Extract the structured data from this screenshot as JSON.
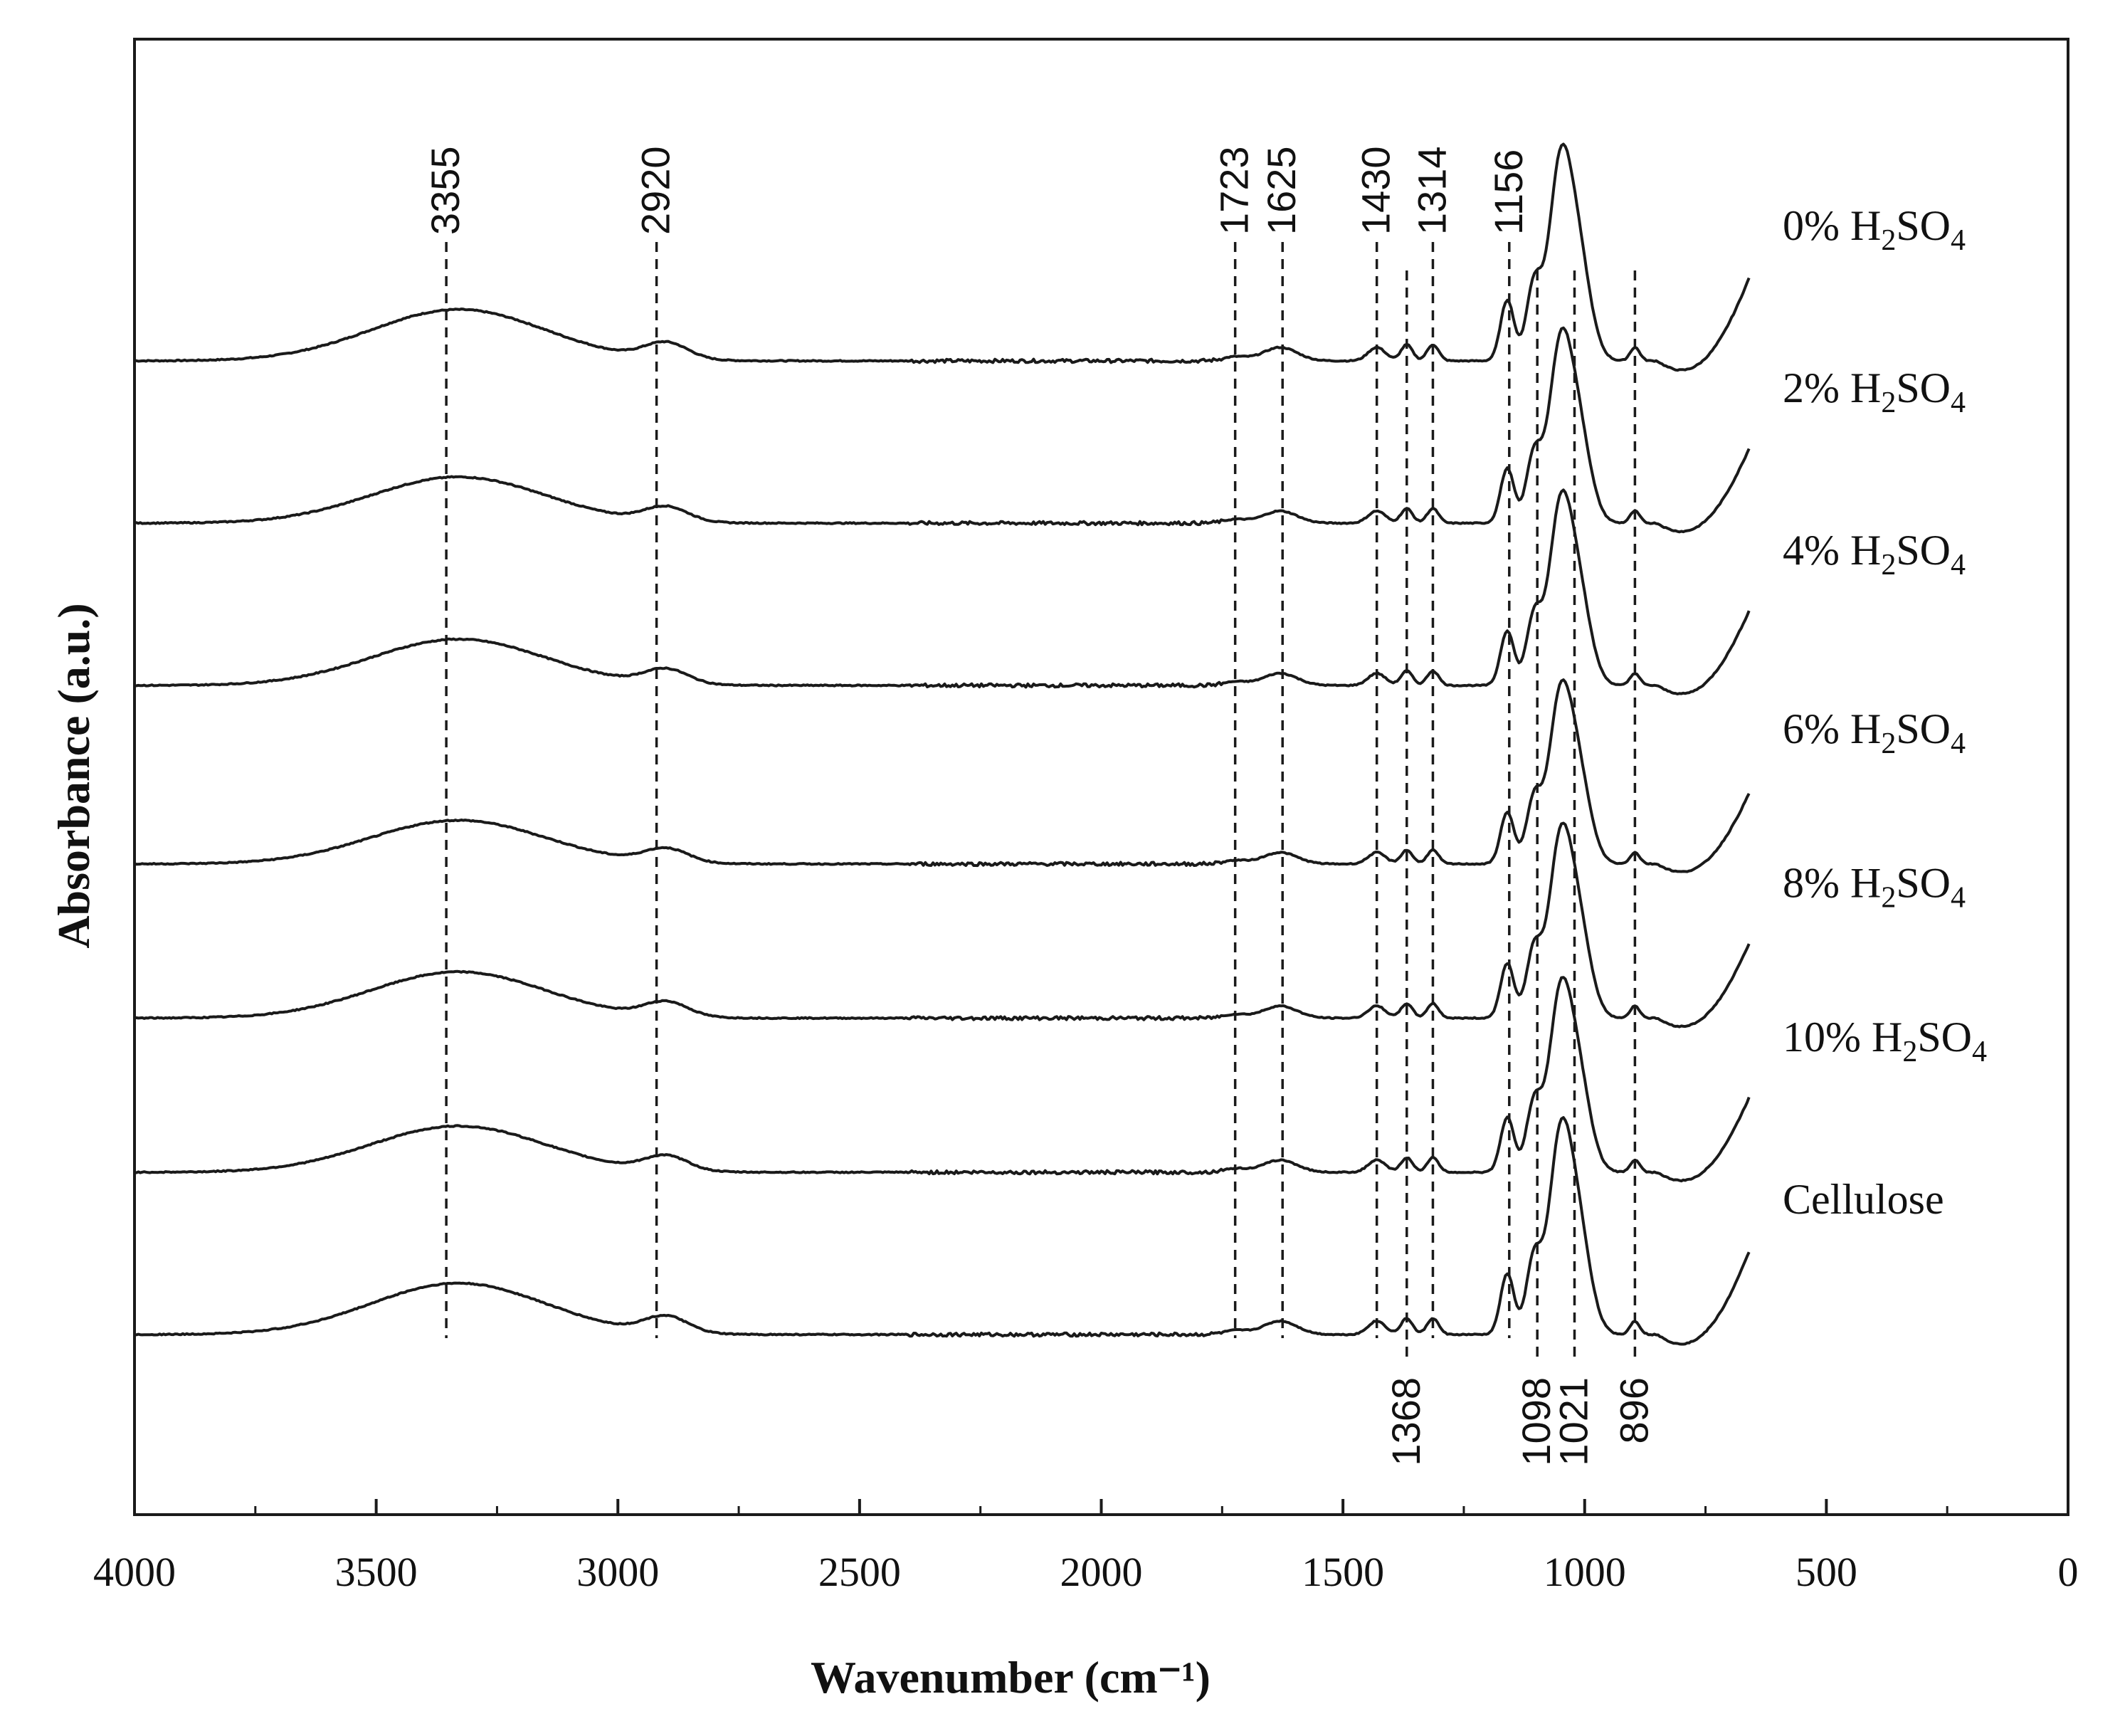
{
  "chart_data": {
    "type": "line",
    "title": "",
    "xlabel": "Wavenumber (cm⁻¹)",
    "ylabel": "Absorbance (a.u.)",
    "xlim": [
      4000,
      0
    ],
    "x_reversed": true,
    "x_ticks": [
      4000,
      3500,
      3000,
      2500,
      2000,
      1500,
      1000,
      500,
      0
    ],
    "y_ticks": [],
    "grid": false,
    "series": [
      {
        "name": "0% H2SO4",
        "label_main": "0% H",
        "label_sub1": "2",
        "label_mid": "SO",
        "label_sub2": "4",
        "offset": 6.0,
        "scale": 1.0
      },
      {
        "name": "2% H2SO4",
        "label_main": "2% H",
        "label_sub1": "2",
        "label_mid": "SO",
        "label_sub2": "4",
        "offset": 5.0,
        "scale": 0.9
      },
      {
        "name": "4% H2SO4",
        "label_main": "4% H",
        "label_sub1": "2",
        "label_mid": "SO",
        "label_sub2": "4",
        "offset": 4.0,
        "scale": 0.9
      },
      {
        "name": "6% H2SO4",
        "label_main": "6% H",
        "label_sub1": "2",
        "label_mid": "SO",
        "label_sub2": "4",
        "offset": 2.9,
        "scale": 0.85
      },
      {
        "name": "8% H2SO4",
        "label_main": "8% H",
        "label_sub1": "2",
        "label_mid": "SO",
        "label_sub2": "4",
        "offset": 1.95,
        "scale": 0.9
      },
      {
        "name": "10% H2SO4",
        "label_main": "10% H",
        "label_sub1": "2",
        "label_mid": "SO",
        "label_sub2": "4",
        "offset": 1.0,
        "scale": 0.9
      },
      {
        "name": "Cellulose",
        "label_main": "Cellulose",
        "label_sub1": "",
        "label_mid": "",
        "label_sub2": "",
        "offset": 0.0,
        "scale": 1.0
      }
    ],
    "spectrum_shape": {
      "description": "approximate absorbance profile shared by all traces (a.u.)",
      "peaks": [
        {
          "center": 3330,
          "width": 180,
          "height": 0.38
        },
        {
          "center": 2900,
          "width": 45,
          "height": 0.12
        },
        {
          "center": 1723,
          "width": 25,
          "height": 0.03
        },
        {
          "center": 1630,
          "width": 35,
          "height": 0.1
        },
        {
          "center": 1430,
          "width": 18,
          "height": 0.1
        },
        {
          "center": 1368,
          "width": 12,
          "height": 0.12
        },
        {
          "center": 1314,
          "width": 12,
          "height": 0.12
        },
        {
          "center": 1160,
          "width": 14,
          "height": 0.45
        },
        {
          "center": 1105,
          "width": 16,
          "height": 0.55
        },
        {
          "center": 1055,
          "width": 22,
          "height": 1.05
        },
        {
          "center": 1021,
          "width": 28,
          "height": 0.95
        },
        {
          "center": 896,
          "width": 10,
          "height": 0.1
        }
      ],
      "tail": {
        "from": 850,
        "to": 660,
        "rise": 0.68
      }
    },
    "annotations": {
      "peaks_top": [
        3355,
        2920,
        1723,
        1625,
        1430,
        1314,
        1156
      ],
      "peaks_bottom": [
        1368,
        1098,
        1021,
        896
      ]
    }
  }
}
